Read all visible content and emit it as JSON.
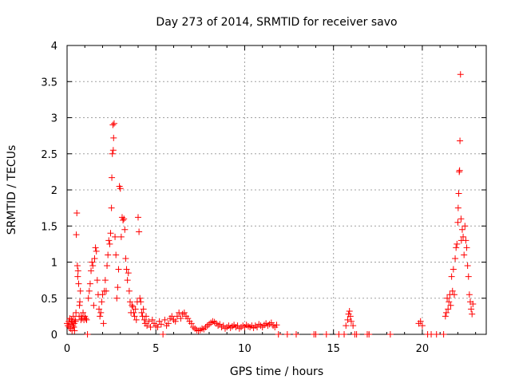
{
  "chart_data": {
    "type": "scatter",
    "title": "Day 273 of 2014, SRMTID for receiver savo",
    "xlabel": "GPS time / hours",
    "ylabel": "SRMTID / TECUs",
    "xlim": [
      0,
      23.6
    ],
    "ylim": [
      0,
      4
    ],
    "xticks": [
      0,
      5,
      10,
      15,
      20
    ],
    "yticks": [
      0,
      0.5,
      1,
      1.5,
      2,
      2.5,
      3,
      3.5,
      4
    ],
    "grid": true,
    "marker": "+",
    "series": [
      {
        "name": "SRMTID",
        "color": "#ff0000",
        "points": [
          [
            0.0,
            0.15
          ],
          [
            0.05,
            0.12
          ],
          [
            0.1,
            0.18
          ],
          [
            0.12,
            0.1
          ],
          [
            0.15,
            0.22
          ],
          [
            0.2,
            0.08
          ],
          [
            0.22,
            0.14
          ],
          [
            0.25,
            0.2
          ],
          [
            0.28,
            0.05
          ],
          [
            0.3,
            0.17
          ],
          [
            0.33,
            0.12
          ],
          [
            0.35,
            0.25
          ],
          [
            0.38,
            0.1
          ],
          [
            0.4,
            0.15
          ],
          [
            0.42,
            0.05
          ],
          [
            0.45,
            0.2
          ],
          [
            0.48,
            0.18
          ],
          [
            0.5,
            0.3
          ],
          [
            0.52,
            1.38
          ],
          [
            0.55,
            1.68
          ],
          [
            0.58,
            0.95
          ],
          [
            0.6,
            0.8
          ],
          [
            0.62,
            0.88
          ],
          [
            0.65,
            0.7
          ],
          [
            0.68,
            0.25
          ],
          [
            0.7,
            0.4
          ],
          [
            0.72,
            0.45
          ],
          [
            0.75,
            0.6
          ],
          [
            0.78,
            0.2
          ],
          [
            0.8,
            0.25
          ],
          [
            0.85,
            0.22
          ],
          [
            0.9,
            0.3
          ],
          [
            0.95,
            0.2
          ],
          [
            1.0,
            0.25
          ],
          [
            1.05,
            0.22
          ],
          [
            1.1,
            0.2
          ],
          [
            1.15,
            0.0
          ],
          [
            1.2,
            0.5
          ],
          [
            1.25,
            0.6
          ],
          [
            1.3,
            0.7
          ],
          [
            1.35,
            0.88
          ],
          [
            1.4,
            1.0
          ],
          [
            1.45,
            0.95
          ],
          [
            1.5,
            0.4
          ],
          [
            1.55,
            1.05
          ],
          [
            1.6,
            1.2
          ],
          [
            1.65,
            1.15
          ],
          [
            1.7,
            0.75
          ],
          [
            1.75,
            0.55
          ],
          [
            1.8,
            0.35
          ],
          [
            1.85,
            0.25
          ],
          [
            1.9,
            0.3
          ],
          [
            1.95,
            0.45
          ],
          [
            2.0,
            0.55
          ],
          [
            2.05,
            0.15
          ],
          [
            2.1,
            0.6
          ],
          [
            2.15,
            0.75
          ],
          [
            2.2,
            0.6
          ],
          [
            2.25,
            0.95
          ],
          [
            2.3,
            1.1
          ],
          [
            2.35,
            1.3
          ],
          [
            2.4,
            1.25
          ],
          [
            2.45,
            1.4
          ],
          [
            2.5,
            1.75
          ],
          [
            2.52,
            2.17
          ],
          [
            2.55,
            2.5
          ],
          [
            2.58,
            2.9
          ],
          [
            2.6,
            2.55
          ],
          [
            2.62,
            2.72
          ],
          [
            2.65,
            2.92
          ],
          [
            2.7,
            1.35
          ],
          [
            2.75,
            1.1
          ],
          [
            2.8,
            0.5
          ],
          [
            2.85,
            0.65
          ],
          [
            2.9,
            0.9
          ],
          [
            2.95,
            2.05
          ],
          [
            3.0,
            2.02
          ],
          [
            3.05,
            1.35
          ],
          [
            3.1,
            1.62
          ],
          [
            3.15,
            1.58
          ],
          [
            3.2,
            1.6
          ],
          [
            3.25,
            1.45
          ],
          [
            3.3,
            1.05
          ],
          [
            3.35,
            0.9
          ],
          [
            3.4,
            0.75
          ],
          [
            3.45,
            0.85
          ],
          [
            3.5,
            0.6
          ],
          [
            3.55,
            0.45
          ],
          [
            3.6,
            0.3
          ],
          [
            3.65,
            0.4
          ],
          [
            3.7,
            0.38
          ],
          [
            3.75,
            0.3
          ],
          [
            3.8,
            0.25
          ],
          [
            3.85,
            0.35
          ],
          [
            3.9,
            0.2
          ],
          [
            3.95,
            0.45
          ],
          [
            4.0,
            1.62
          ],
          [
            4.05,
            1.42
          ],
          [
            4.1,
            0.5
          ],
          [
            4.15,
            0.45
          ],
          [
            4.2,
            0.3
          ],
          [
            4.25,
            0.25
          ],
          [
            4.3,
            0.35
          ],
          [
            4.35,
            0.2
          ],
          [
            4.4,
            0.15
          ],
          [
            4.45,
            0.25
          ],
          [
            4.5,
            0.12
          ],
          [
            4.6,
            0.18
          ],
          [
            4.7,
            0.1
          ],
          [
            4.8,
            0.2
          ],
          [
            4.9,
            0.15
          ],
          [
            5.0,
            0.12
          ],
          [
            5.1,
            0.1
          ],
          [
            5.2,
            0.18
          ],
          [
            5.3,
            0.14
          ],
          [
            5.4,
            0.0
          ],
          [
            5.5,
            0.2
          ],
          [
            5.6,
            0.12
          ],
          [
            5.7,
            0.15
          ],
          [
            5.8,
            0.22
          ],
          [
            5.9,
            0.25
          ],
          [
            6.0,
            0.2
          ],
          [
            6.1,
            0.18
          ],
          [
            6.2,
            0.25
          ],
          [
            6.3,
            0.3
          ],
          [
            6.4,
            0.22
          ],
          [
            6.5,
            0.28
          ],
          [
            6.6,
            0.3
          ],
          [
            6.7,
            0.25
          ],
          [
            6.8,
            0.22
          ],
          [
            6.9,
            0.18
          ],
          [
            7.0,
            0.15
          ],
          [
            7.1,
            0.1
          ],
          [
            7.2,
            0.08
          ],
          [
            7.3,
            0.06
          ],
          [
            7.4,
            0.05
          ],
          [
            7.5,
            0.06
          ],
          [
            7.6,
            0.08
          ],
          [
            7.7,
            0.07
          ],
          [
            7.8,
            0.1
          ],
          [
            7.9,
            0.12
          ],
          [
            8.0,
            0.14
          ],
          [
            8.1,
            0.16
          ],
          [
            8.2,
            0.18
          ],
          [
            8.3,
            0.17
          ],
          [
            8.4,
            0.15
          ],
          [
            8.5,
            0.12
          ],
          [
            8.6,
            0.14
          ],
          [
            8.7,
            0.1
          ],
          [
            8.8,
            0.12
          ],
          [
            8.9,
            0.08
          ],
          [
            9.0,
            0.1
          ],
          [
            9.1,
            0.12
          ],
          [
            9.2,
            0.09
          ],
          [
            9.3,
            0.11
          ],
          [
            9.4,
            0.13
          ],
          [
            9.5,
            0.1
          ],
          [
            9.6,
            0.12
          ],
          [
            9.7,
            0.08
          ],
          [
            9.8,
            0.1
          ],
          [
            9.9,
            0.12
          ],
          [
            10.0,
            0.1
          ],
          [
            10.1,
            0.13
          ],
          [
            10.2,
            0.11
          ],
          [
            10.3,
            0.1
          ],
          [
            10.4,
            0.12
          ],
          [
            10.5,
            0.09
          ],
          [
            10.6,
            0.12
          ],
          [
            10.7,
            0.1
          ],
          [
            10.8,
            0.14
          ],
          [
            10.9,
            0.12
          ],
          [
            11.0,
            0.1
          ],
          [
            11.1,
            0.13
          ],
          [
            11.2,
            0.15
          ],
          [
            11.3,
            0.12
          ],
          [
            11.4,
            0.14
          ],
          [
            11.5,
            0.16
          ],
          [
            11.6,
            0.12
          ],
          [
            11.7,
            0.1
          ],
          [
            11.8,
            0.13
          ],
          [
            11.9,
            0.0
          ],
          [
            12.4,
            0.0
          ],
          [
            12.9,
            0.0
          ],
          [
            13.9,
            0.0
          ],
          [
            14.0,
            0.0
          ],
          [
            14.6,
            0.0
          ],
          [
            15.3,
            0.0
          ],
          [
            15.6,
            0.0
          ],
          [
            15.7,
            0.12
          ],
          [
            15.8,
            0.2
          ],
          [
            15.85,
            0.28
          ],
          [
            15.9,
            0.32
          ],
          [
            15.95,
            0.25
          ],
          [
            16.0,
            0.18
          ],
          [
            16.1,
            0.12
          ],
          [
            16.2,
            0.0
          ],
          [
            16.3,
            0.0
          ],
          [
            16.9,
            0.0
          ],
          [
            17.0,
            0.0
          ],
          [
            18.2,
            0.0
          ],
          [
            19.8,
            0.15
          ],
          [
            19.9,
            0.18
          ],
          [
            20.0,
            0.12
          ],
          [
            20.3,
            0.0
          ],
          [
            20.5,
            0.0
          ],
          [
            20.8,
            0.0
          ],
          [
            21.2,
            0.0
          ],
          [
            21.3,
            0.25
          ],
          [
            21.35,
            0.3
          ],
          [
            21.4,
            0.5
          ],
          [
            21.45,
            0.35
          ],
          [
            21.5,
            0.45
          ],
          [
            21.55,
            0.55
          ],
          [
            21.6,
            0.4
          ],
          [
            21.65,
            0.8
          ],
          [
            21.7,
            0.6
          ],
          [
            21.75,
            0.9
          ],
          [
            21.8,
            0.55
          ],
          [
            21.85,
            1.05
          ],
          [
            21.9,
            1.2
          ],
          [
            21.95,
            1.25
          ],
          [
            22.0,
            1.55
          ],
          [
            22.02,
            1.75
          ],
          [
            22.05,
            1.95
          ],
          [
            22.08,
            2.25
          ],
          [
            22.1,
            2.27
          ],
          [
            22.12,
            2.68
          ],
          [
            22.15,
            3.6
          ],
          [
            22.18,
            1.6
          ],
          [
            22.2,
            1.3
          ],
          [
            22.25,
            1.45
          ],
          [
            22.3,
            1.35
          ],
          [
            22.35,
            1.1
          ],
          [
            22.4,
            1.5
          ],
          [
            22.45,
            1.3
          ],
          [
            22.5,
            1.2
          ],
          [
            22.55,
            0.95
          ],
          [
            22.6,
            0.8
          ],
          [
            22.65,
            0.55
          ],
          [
            22.7,
            0.45
          ],
          [
            22.75,
            0.35
          ],
          [
            22.8,
            0.28
          ],
          [
            22.85,
            0.42
          ]
        ]
      }
    ]
  }
}
